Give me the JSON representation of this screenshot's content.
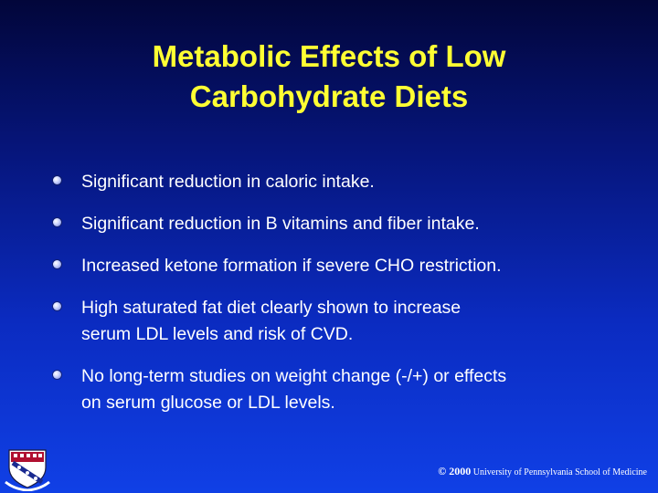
{
  "slide": {
    "title_line1": "Metabolic Effects of Low",
    "title_line2": "Carbohydrate Diets",
    "bullets": [
      {
        "line1": "Significant reduction in caloric intake.",
        "line2": ""
      },
      {
        "line1": "Significant reduction in B vitamins and fiber intake.",
        "line2": ""
      },
      {
        "line1": "Increased ketone formation if severe CHO restriction.",
        "line2": ""
      },
      {
        "line1": "High saturated fat diet clearly shown to increase",
        "line2": "serum LDL levels and risk of CVD."
      },
      {
        "line1": "No long-term studies on weight change (-/+) or effects",
        "line2": "on serum glucose or LDL levels."
      }
    ],
    "footer": {
      "copyright": "© 2000",
      "institution": "University of Pennsylvania School of Medicine"
    },
    "logo_icon": "penn-shield-icon",
    "colors": {
      "title": "#ffff33",
      "text": "#ffffff",
      "background_top": "#02063a",
      "background_bottom": "#1040e6"
    }
  }
}
